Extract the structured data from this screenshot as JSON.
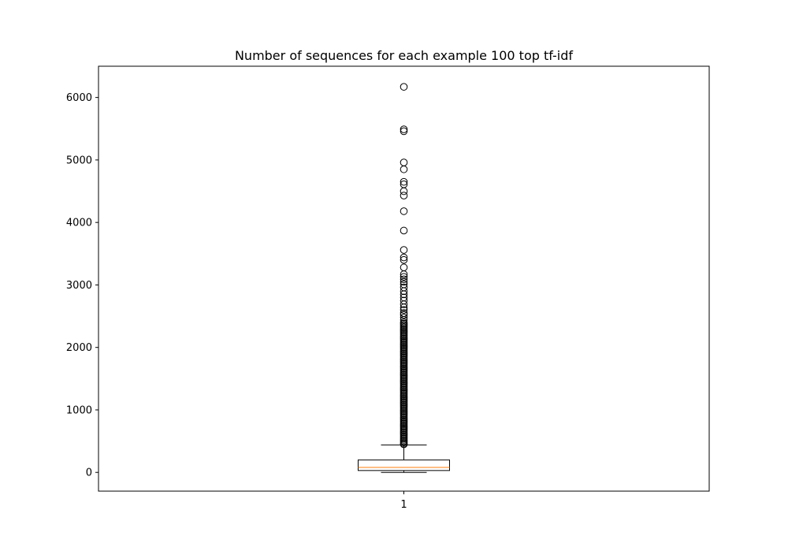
{
  "chart_data": {
    "type": "boxplot",
    "title": "Number of sequences for each example 100 top tf-idf",
    "xlabel": "",
    "ylabel": "",
    "categories": [
      "1"
    ],
    "ylim": [
      -300,
      6500
    ],
    "yticks": [
      0,
      1000,
      2000,
      3000,
      4000,
      5000,
      6000
    ],
    "grid": false,
    "series": [
      {
        "box": {
          "whisker_low": 0,
          "q1": 30,
          "median": 80,
          "q3": 200,
          "whisker_high": 440
        },
        "outliers": [
          6170,
          5490,
          5460,
          4960,
          4850,
          4650,
          4610,
          4500,
          4430,
          4180,
          3870,
          3560,
          3440,
          3400,
          3280,
          3170,
          3130,
          3090,
          3050,
          3010,
          2960,
          2900,
          2850,
          2800,
          2750,
          2690,
          2640,
          2600,
          2550,
          2520,
          2480,
          2440,
          2400,
          2380,
          2360,
          2340,
          2320,
          2300,
          2280,
          2260,
          2240,
          2220,
          2200,
          2180,
          2160,
          2140,
          2120,
          2100,
          2080,
          2060,
          2040,
          2020,
          2000,
          1980,
          1960,
          1940,
          1920,
          1900,
          1880,
          1860,
          1840,
          1820,
          1800,
          1780,
          1760,
          1740,
          1720,
          1700,
          1680,
          1660,
          1640,
          1620,
          1600,
          1580,
          1560,
          1540,
          1520,
          1500,
          1480,
          1460,
          1440,
          1420,
          1400,
          1380,
          1360,
          1340,
          1320,
          1300,
          1280,
          1260,
          1240,
          1220,
          1200,
          1180,
          1160,
          1140,
          1120,
          1100,
          1080,
          1060,
          1040,
          1020,
          1000,
          980,
          960,
          940,
          920,
          900,
          880,
          860,
          840,
          820,
          800,
          780,
          760,
          740,
          720,
          700,
          680,
          660,
          640,
          620,
          600,
          580,
          560,
          540,
          520,
          500,
          480,
          460,
          450
        ]
      }
    ],
    "colors": {
      "box": "#000000",
      "median": "#ff7f0e",
      "outlier": "#000000"
    }
  }
}
